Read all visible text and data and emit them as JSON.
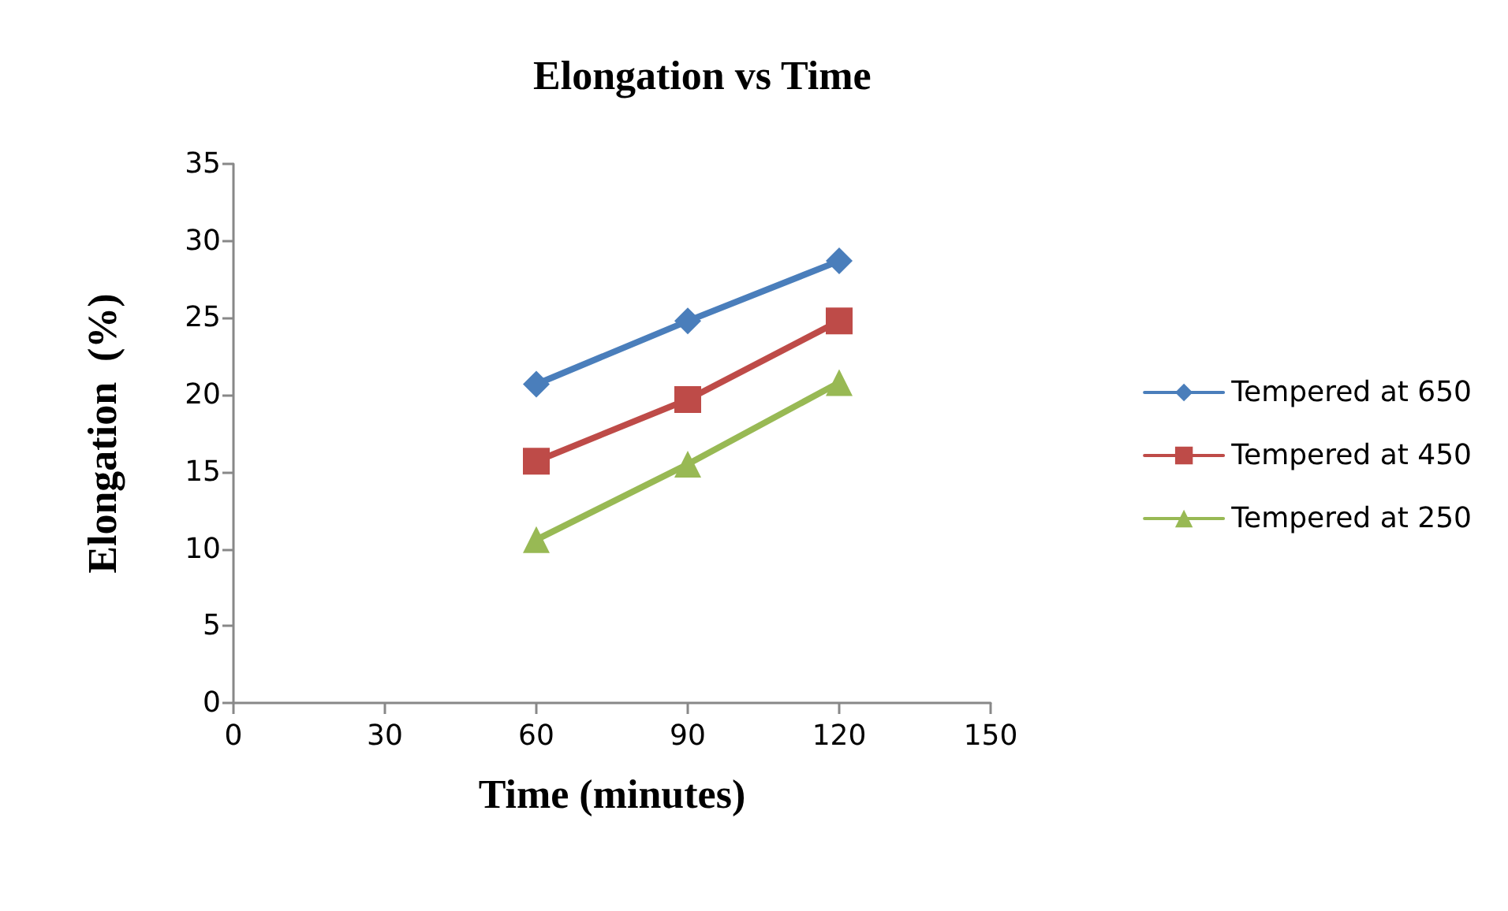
{
  "chart_data": {
    "type": "line",
    "title": "Elongation vs Time",
    "xlabel": "Time (minutes)",
    "ylabel": "Elongation  (%)",
    "xlim": [
      0,
      150
    ],
    "xticks": [
      0,
      30,
      60,
      90,
      120,
      150
    ],
    "ylim": [
      0,
      35
    ],
    "yticks": [
      0,
      5,
      10,
      15,
      20,
      25,
      30,
      35
    ],
    "x": [
      60,
      90,
      120
    ],
    "series": [
      {
        "name": "Tempered at 650",
        "color": "#4a7ebb",
        "values": [
          20.7,
          24.8,
          28.7
        ],
        "marker": "diamond"
      },
      {
        "name": "Tempered at 450",
        "color": "#be4b48",
        "values": [
          15.7,
          19.7,
          24.8
        ],
        "marker": "square"
      },
      {
        "name": "Tempered at 250",
        "color": "#98b954",
        "values": [
          10.6,
          15.5,
          20.8
        ],
        "marker": "triangle"
      }
    ],
    "grid": false,
    "legend": "right",
    "line_style": "solid"
  }
}
